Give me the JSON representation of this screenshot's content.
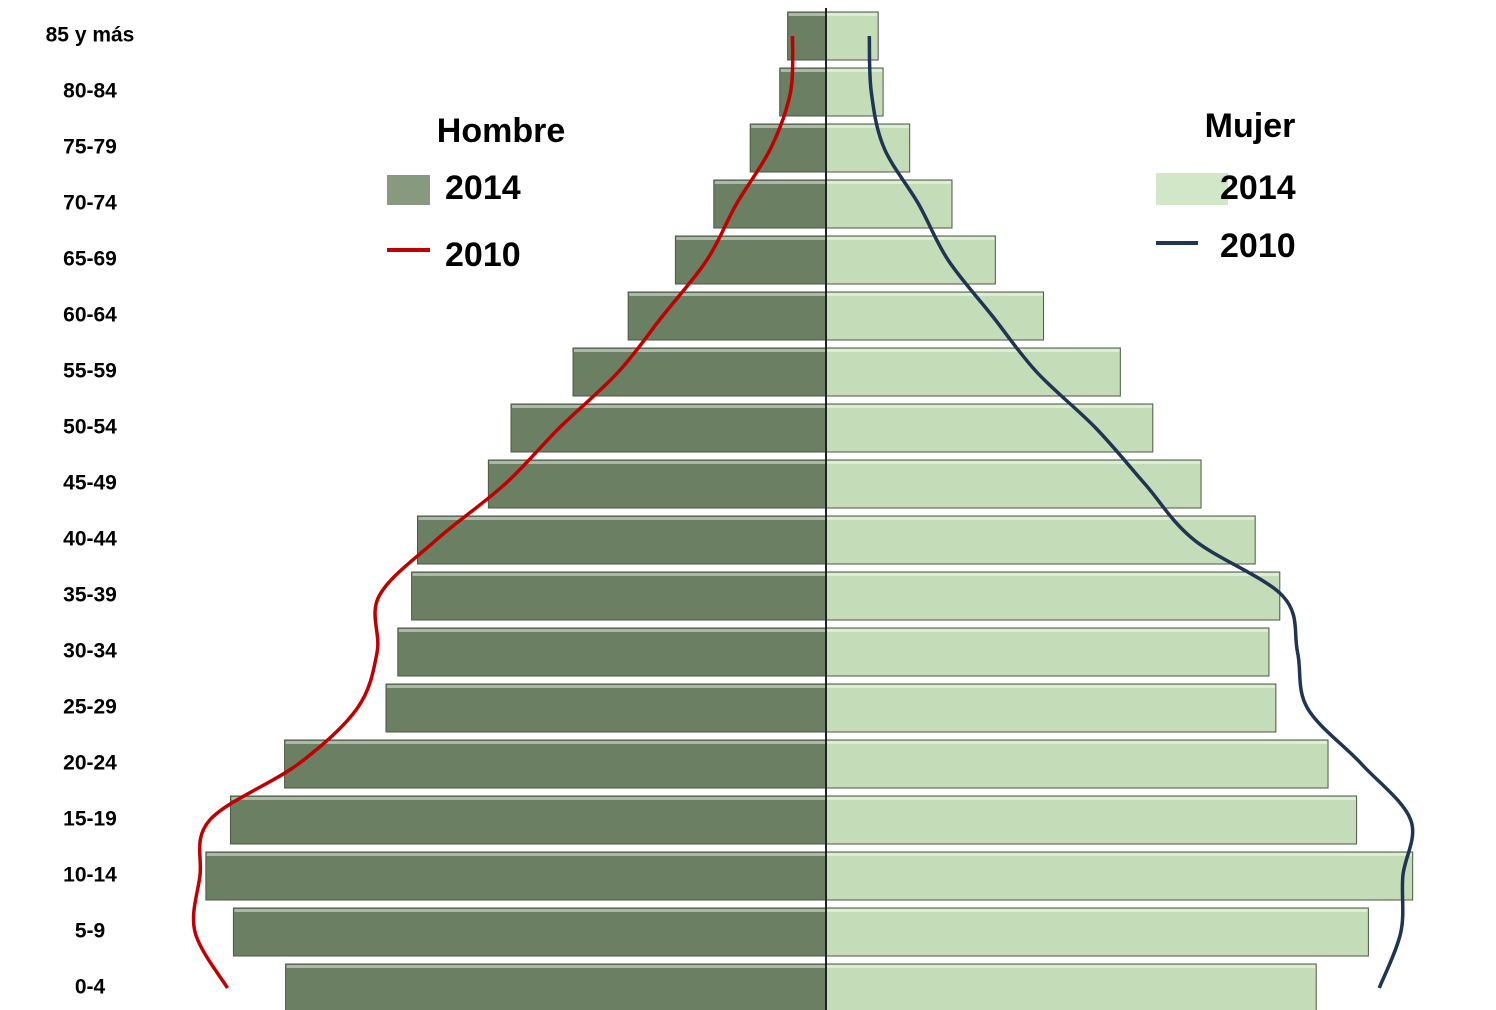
{
  "chart_data": {
    "type": "population-pyramid",
    "categories": [
      "0-4",
      "5-9",
      "10-14",
      "15-19",
      "20-24",
      "25-29",
      "30-34",
      "35-39",
      "40-44",
      "45-49",
      "50-54",
      "55-59",
      "60-64",
      "65-69",
      "70-74",
      "75-79",
      "80-84",
      "85 y más"
    ],
    "xlim": [
      0,
      640
    ],
    "groups": [
      {
        "name": "Hombre",
        "series": [
          {
            "name": "2014",
            "kind": "bar",
            "color": "#6b7f63",
            "legend_color": "#879a7f",
            "values": [
              549,
              602,
              630,
              605,
              550,
              447,
              435,
              421,
              415,
              343,
              320,
              257,
              201,
              153,
              114,
              77,
              47,
              39
            ]
          },
          {
            "name": "2010",
            "kind": "line",
            "color": "#c00000",
            "values": [
              608,
              641,
              636,
              626,
              536,
              476,
              456,
              454,
              396,
              326,
              271,
              211,
              166,
              121,
              91,
              56,
              36,
              34
            ]
          }
        ]
      },
      {
        "name": "Mujer",
        "series": [
          {
            "name": "2014",
            "kind": "bar",
            "color": "#c4dcb8",
            "legend_color": "#d2e6c8",
            "values": [
              498,
              551,
              596,
              539,
              510,
              457,
              450,
              461,
              436,
              381,
              332,
              299,
              221,
              172,
              128,
              85,
              58,
              53
            ]
          },
          {
            "name": "2010",
            "kind": "line",
            "color": "#1f3552",
            "values": [
              562,
              584,
              586,
              594,
              544,
              489,
              479,
              464,
              374,
              324,
              274,
              214,
              169,
              124,
              94,
              59,
              46,
              44
            ]
          }
        ]
      }
    ]
  }
}
